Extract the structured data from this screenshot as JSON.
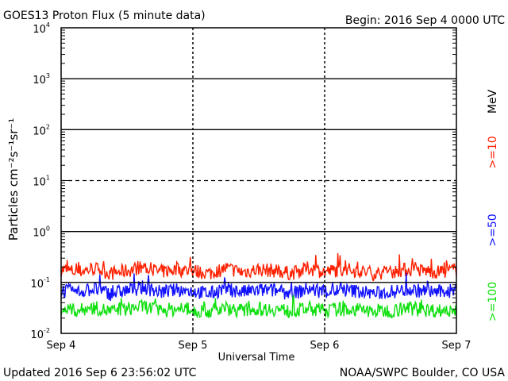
{
  "header": {
    "title": "GOES13 Proton Flux (5 minute data)",
    "begin": "Begin: 2016 Sep 4 0000 UTC"
  },
  "footer": {
    "updated": "Updated 2016 Sep  6 23:56:02 UTC",
    "credit": "NOAA/SWPC Boulder, CO USA"
  },
  "colors": {
    "mev_10": "#ff2000",
    "mev_50": "#1010ff",
    "mev_100": "#10e010"
  },
  "chart_data": {
    "type": "line",
    "title": "GOES13 Proton Flux (5 minute data)",
    "xlabel": "Universal Time",
    "ylabel": "Particles cm⁻²s⁻¹sr⁻¹",
    "unit_label": "MeV",
    "y_scale": "log",
    "ylim": [
      0.01,
      10000
    ],
    "xlim": [
      "2016-09-04 00:00",
      "2016-09-07 00:00"
    ],
    "x_ticks": [
      "Sep 4",
      "Sep 5",
      "Sep 6",
      "Sep 7"
    ],
    "y_ticks": [
      {
        "value": 0.01,
        "base": "10",
        "exp": "-2"
      },
      {
        "value": 0.1,
        "base": "10",
        "exp": "-1"
      },
      {
        "value": 1,
        "base": "10",
        "exp": "0"
      },
      {
        "value": 10,
        "base": "10",
        "exp": "1"
      },
      {
        "value": 100,
        "base": "10",
        "exp": "2"
      },
      {
        "value": 1000,
        "base": "10",
        "exp": "3"
      },
      {
        "value": 10000,
        "base": "10",
        "exp": "4"
      }
    ],
    "threshold_lines": [
      {
        "value": 10,
        "style": "dashed"
      },
      {
        "value": 1,
        "style": "solid"
      },
      {
        "value": 100,
        "style": "solid"
      },
      {
        "value": 1000,
        "style": "solid"
      },
      {
        "value": 0.1,
        "style": "solid"
      }
    ],
    "grid": "daily dashed verticals",
    "series": [
      {
        "name": ">=10",
        "color": "#ff2000",
        "x": [
          "2016-09-04 00:00",
          "2016-09-04 03:00",
          "2016-09-04 06:00",
          "2016-09-04 09:00",
          "2016-09-04 12:00",
          "2016-09-04 15:00",
          "2016-09-04 18:00",
          "2016-09-04 21:00",
          "2016-09-05 00:00",
          "2016-09-05 03:00",
          "2016-09-05 06:00",
          "2016-09-05 09:00",
          "2016-09-05 12:00",
          "2016-09-05 15:00",
          "2016-09-05 18:00",
          "2016-09-05 21:00",
          "2016-09-06 00:00",
          "2016-09-06 03:00",
          "2016-09-06 06:00",
          "2016-09-06 09:00",
          "2016-09-06 12:00",
          "2016-09-06 15:00",
          "2016-09-06 18:00",
          "2016-09-06 21:00",
          "2016-09-07 00:00"
        ],
        "values": [
          0.18,
          0.16,
          0.19,
          0.15,
          0.17,
          0.2,
          0.16,
          0.18,
          0.17,
          0.15,
          0.19,
          0.16,
          0.18,
          0.17,
          0.15,
          0.19,
          0.16,
          0.18,
          0.17,
          0.15,
          0.16,
          0.18,
          0.17,
          0.16,
          0.18
        ]
      },
      {
        "name": ">=50",
        "color": "#1010ff",
        "x": [
          "2016-09-04 00:00",
          "2016-09-04 03:00",
          "2016-09-04 06:00",
          "2016-09-04 09:00",
          "2016-09-04 12:00",
          "2016-09-04 15:00",
          "2016-09-04 18:00",
          "2016-09-04 21:00",
          "2016-09-05 00:00",
          "2016-09-05 03:00",
          "2016-09-05 06:00",
          "2016-09-05 09:00",
          "2016-09-05 12:00",
          "2016-09-05 15:00",
          "2016-09-05 18:00",
          "2016-09-05 21:00",
          "2016-09-06 00:00",
          "2016-09-06 03:00",
          "2016-09-06 06:00",
          "2016-09-06 09:00",
          "2016-09-06 12:00",
          "2016-09-06 15:00",
          "2016-09-06 18:00",
          "2016-09-06 21:00",
          "2016-09-07 00:00"
        ],
        "values": [
          0.07,
          0.065,
          0.075,
          0.06,
          0.07,
          0.08,
          0.065,
          0.07,
          0.068,
          0.06,
          0.075,
          0.065,
          0.07,
          0.07,
          0.06,
          0.075,
          0.065,
          0.07,
          0.068,
          0.06,
          0.065,
          0.072,
          0.068,
          0.065,
          0.07
        ]
      },
      {
        "name": ">=100",
        "color": "#10e010",
        "x": [
          "2016-09-04 00:00",
          "2016-09-04 03:00",
          "2016-09-04 06:00",
          "2016-09-04 09:00",
          "2016-09-04 12:00",
          "2016-09-04 15:00",
          "2016-09-04 18:00",
          "2016-09-04 21:00",
          "2016-09-05 00:00",
          "2016-09-05 03:00",
          "2016-09-05 06:00",
          "2016-09-05 09:00",
          "2016-09-05 12:00",
          "2016-09-05 15:00",
          "2016-09-05 18:00",
          "2016-09-05 21:00",
          "2016-09-06 00:00",
          "2016-09-06 03:00",
          "2016-09-06 06:00",
          "2016-09-06 09:00",
          "2016-09-06 12:00",
          "2016-09-06 15:00",
          "2016-09-06 18:00",
          "2016-09-06 21:00",
          "2016-09-07 00:00"
        ],
        "values": [
          0.03,
          0.028,
          0.032,
          0.027,
          0.03,
          0.034,
          0.028,
          0.03,
          0.029,
          0.027,
          0.031,
          0.028,
          0.03,
          0.03,
          0.027,
          0.031,
          0.028,
          0.03,
          0.029,
          0.027,
          0.028,
          0.031,
          0.029,
          0.028,
          0.03
        ]
      }
    ]
  }
}
